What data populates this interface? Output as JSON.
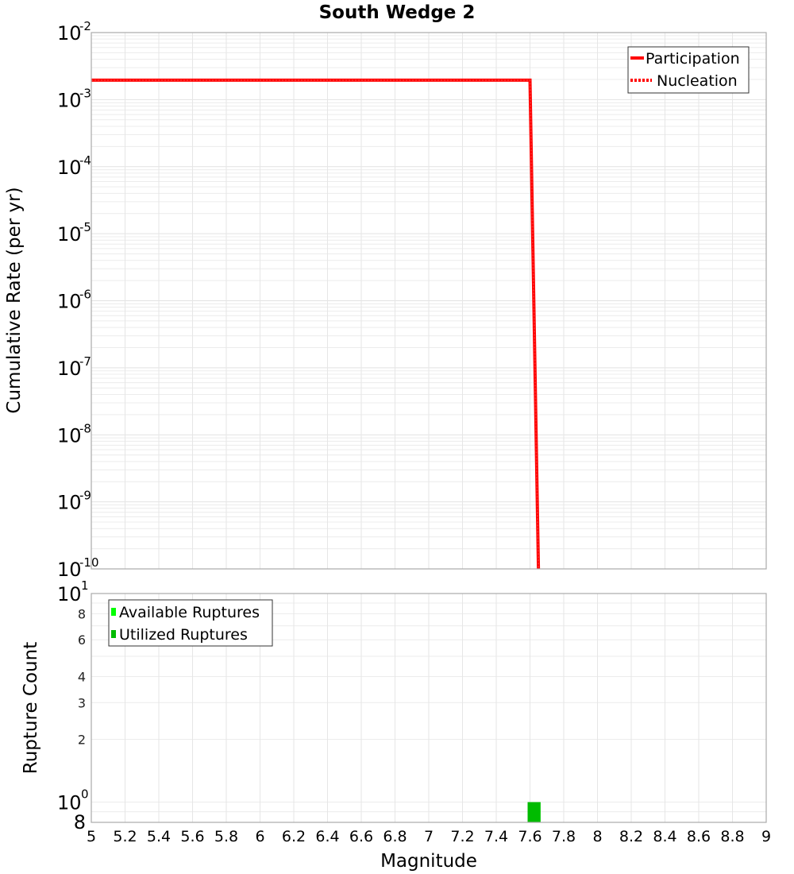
{
  "chart_data": [
    {
      "type": "line",
      "title": "South Wedge 2",
      "xlabel": "Magnitude",
      "ylabel": "Cumulative Rate (per yr)",
      "yscale": "log",
      "xlim": [
        5,
        9
      ],
      "ylim": [
        1e-10,
        0.01
      ],
      "y_tick_exponents": [
        -2,
        -3,
        -4,
        -5,
        -6,
        -7,
        -8,
        -9,
        -10
      ],
      "grid": true,
      "legend_position": "upper right",
      "series": [
        {
          "name": "Participation",
          "style": "solid",
          "color": "#ff0000",
          "x": [
            5.0,
            7.6,
            7.65
          ],
          "y": [
            0.00195,
            0.00195,
            1e-10
          ]
        },
        {
          "name": "Nucleation",
          "style": "dotted",
          "color": "#ff0000",
          "x": [
            5.0,
            7.6,
            7.65
          ],
          "y": [
            0.00195,
            0.00195,
            1e-10
          ]
        }
      ]
    },
    {
      "type": "bar",
      "xlabel": "Magnitude",
      "ylabel": "Rupture Count",
      "yscale": "log",
      "xlim": [
        5,
        9
      ],
      "ylim": [
        0.8,
        10
      ],
      "y_major_ticks": [
        {
          "value": 1,
          "label": "10",
          "exp": "0"
        },
        {
          "value": 10,
          "label": "10",
          "exp": "1"
        }
      ],
      "y_minor_ticks": [
        {
          "value": 0.8,
          "label": "8"
        },
        {
          "value": 2,
          "label": "2"
        },
        {
          "value": 3,
          "label": "3"
        },
        {
          "value": 4,
          "label": "4"
        },
        {
          "value": 6,
          "label": "6"
        },
        {
          "value": 8,
          "label": "8"
        }
      ],
      "x_ticks": [
        "5",
        "5.2",
        "5.4",
        "5.6",
        "5.8",
        "6",
        "6.2",
        "6.4",
        "6.6",
        "6.8",
        "7",
        "7.2",
        "7.4",
        "7.6",
        "7.8",
        "8",
        "8.2",
        "8.4",
        "8.6",
        "8.8",
        "9"
      ],
      "grid": true,
      "legend_position": "upper left",
      "series": [
        {
          "name": "Available Ruptures",
          "color": "#00ff00",
          "bars": [
            {
              "x0": 7.6,
              "x1": 7.7,
              "value": 1
            }
          ]
        },
        {
          "name": "Utilized Ruptures",
          "color": "#00bb00",
          "bars": [
            {
              "x0": 7.6,
              "x1": 7.7,
              "value": 1
            }
          ]
        }
      ]
    }
  ],
  "title": "South Wedge 2",
  "top": {
    "ylabel": "Cumulative Rate (per yr)",
    "legend": [
      "Participation",
      "Nucleation"
    ]
  },
  "bottom": {
    "ylabel": "Rupture Count",
    "xlabel": "Magnitude",
    "legend": [
      "Available Ruptures",
      "Utilized Ruptures"
    ]
  }
}
